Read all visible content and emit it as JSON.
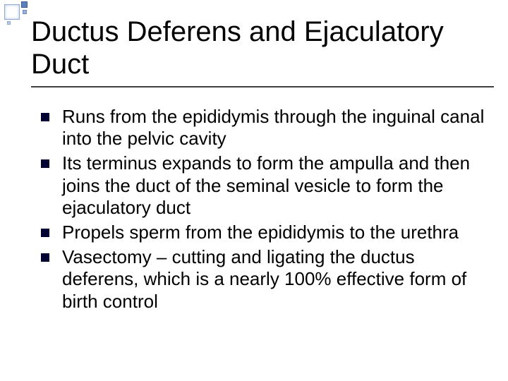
{
  "slide": {
    "title": "Ductus Deferens and Ejaculatory Duct",
    "bullets": [
      "Runs from the epididymis through the inguinal canal into the pelvic cavity",
      "Its terminus expands to form the ampulla and then joins the duct of the seminal vesicle to form the ejaculatory duct",
      "Propels sperm from the epididymis to the urethra",
      "Vasectomy – cutting and ligating the ductus deferens, which is a nearly 100% effective form of birth control"
    ]
  },
  "style": {
    "title_fontsize": 40,
    "body_fontsize": 26,
    "title_color": "#000000",
    "body_color": "#000000",
    "bullet_color": "#000033",
    "underline_color": "#404040",
    "accent_colors": [
      "#5b7fbf",
      "#9ab0d5",
      "#bcc9e2",
      "#8faad0"
    ],
    "background_color": "#ffffff"
  }
}
